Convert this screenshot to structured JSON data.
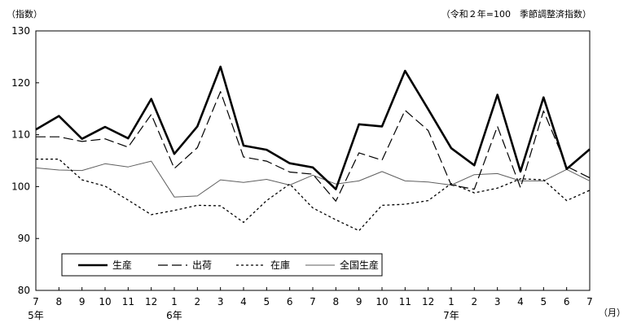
{
  "chart_data": {
    "type": "line",
    "note": "（令和２年=100　季節調整済指数）",
    "ylabel": "（指数）",
    "xunit": "（月）",
    "ylim": [
      80,
      130
    ],
    "yticks": [
      80,
      90,
      100,
      110,
      120,
      130
    ],
    "categories": [
      "7",
      "8",
      "9",
      "10",
      "11",
      "12",
      "1",
      "2",
      "3",
      "4",
      "5",
      "6",
      "7",
      "8",
      "9",
      "10",
      "11",
      "12",
      "1",
      "2",
      "3",
      "4",
      "5",
      "6",
      "7"
    ],
    "year_labels": [
      {
        "index": 0,
        "label": "5年"
      },
      {
        "index": 6,
        "label": "6年"
      },
      {
        "index": 18,
        "label": "7年"
      }
    ],
    "legend_position": "bottom-left",
    "grid": false,
    "series": [
      {
        "name": "生産",
        "style": "solid-thick",
        "color": "#000000",
        "values": [
          111.0,
          113.6,
          109.2,
          111.5,
          109.3,
          116.9,
          106.3,
          111.6,
          123.1,
          107.9,
          107.1,
          104.5,
          103.7,
          99.5,
          112.0,
          111.6,
          122.3,
          114.9,
          107.4,
          104.1,
          117.7,
          102.9,
          117.2,
          103.4,
          107.2
        ]
      },
      {
        "name": "出荷",
        "style": "long-dash",
        "color": "#000000",
        "values": [
          109.6,
          109.6,
          108.7,
          109.2,
          107.6,
          113.9,
          103.5,
          107.5,
          118.3,
          105.7,
          104.9,
          102.8,
          102.4,
          97.2,
          106.5,
          105.1,
          114.7,
          110.8,
          100.3,
          99.5,
          111.6,
          99.8,
          114.6,
          103.9,
          101.7
        ]
      },
      {
        "name": "在庫",
        "style": "short-dash",
        "color": "#000000",
        "values": [
          105.3,
          105.3,
          101.3,
          100.1,
          97.4,
          94.6,
          95.4,
          96.4,
          96.3,
          93.1,
          97.3,
          100.5,
          95.9,
          93.6,
          91.5,
          96.4,
          96.6,
          97.3,
          100.6,
          98.8,
          99.7,
          101.5,
          101.3,
          97.3,
          99.3
        ]
      },
      {
        "name": "全国生産",
        "style": "thin-solid",
        "color": "#5f5f5f",
        "values": [
          103.6,
          103.2,
          103.1,
          104.4,
          103.8,
          104.9,
          98.0,
          98.2,
          101.3,
          100.8,
          101.4,
          100.3,
          102.2,
          100.5,
          101.1,
          102.9,
          101.1,
          100.9,
          100.3,
          102.3,
          102.5,
          101.1,
          101.1,
          103.3,
          101.1
        ]
      }
    ]
  }
}
